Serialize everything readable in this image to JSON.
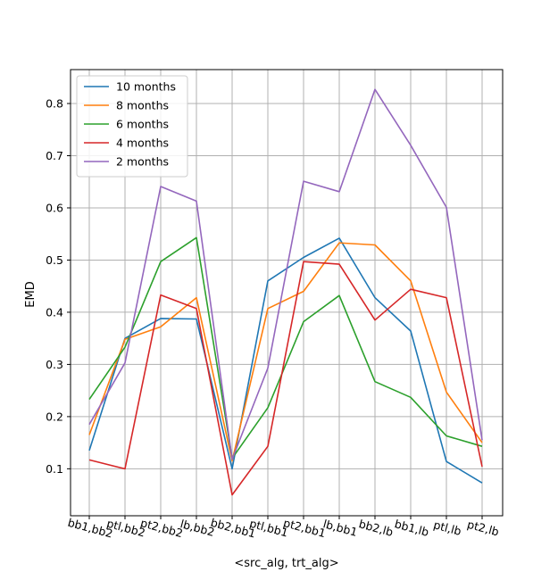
{
  "chart_data": {
    "type": "line",
    "xlabel": "<src_alg, trt_alg>",
    "ylabel": "EMD",
    "categories": [
      "bb1,bb2",
      "ptl,bb2",
      "pt2,bb2",
      "lb,bb2",
      "bb2,bb1",
      "ptl,bb1",
      "pt2,bb1",
      "lb,bb1",
      "bb2,lb",
      "bb1,lb",
      "ptl,lb",
      "pt2,lb"
    ],
    "ylim": [
      0.01,
      0.865
    ],
    "yticks": [
      0.1,
      0.2,
      0.3,
      0.4,
      0.5,
      0.6,
      0.7,
      0.8
    ],
    "grid": true,
    "legend_position": "top-left",
    "series": [
      {
        "name": "10 months",
        "color": "#1f77b4",
        "values": [
          0.135,
          0.35,
          0.388,
          0.387,
          0.1,
          0.46,
          0.505,
          0.542,
          0.428,
          0.364,
          0.114,
          0.073
        ]
      },
      {
        "name": "8 months",
        "color": "#ff7f0e",
        "values": [
          0.165,
          0.348,
          0.372,
          0.428,
          0.115,
          0.407,
          0.44,
          0.533,
          0.529,
          0.46,
          0.247,
          0.15
        ]
      },
      {
        "name": "6 months",
        "color": "#2ca02c",
        "values": [
          0.233,
          0.333,
          0.497,
          0.543,
          0.12,
          0.217,
          0.382,
          0.432,
          0.267,
          0.237,
          0.163,
          0.143
        ]
      },
      {
        "name": "4 months",
        "color": "#d62728",
        "values": [
          0.117,
          0.1,
          0.433,
          0.407,
          0.05,
          0.143,
          0.497,
          0.492,
          0.385,
          0.444,
          0.428,
          0.104
        ]
      },
      {
        "name": "2 months",
        "color": "#9467bd",
        "values": [
          0.185,
          0.303,
          0.641,
          0.613,
          0.118,
          0.293,
          0.651,
          0.631,
          0.827,
          0.72,
          0.601,
          0.155
        ]
      }
    ]
  }
}
